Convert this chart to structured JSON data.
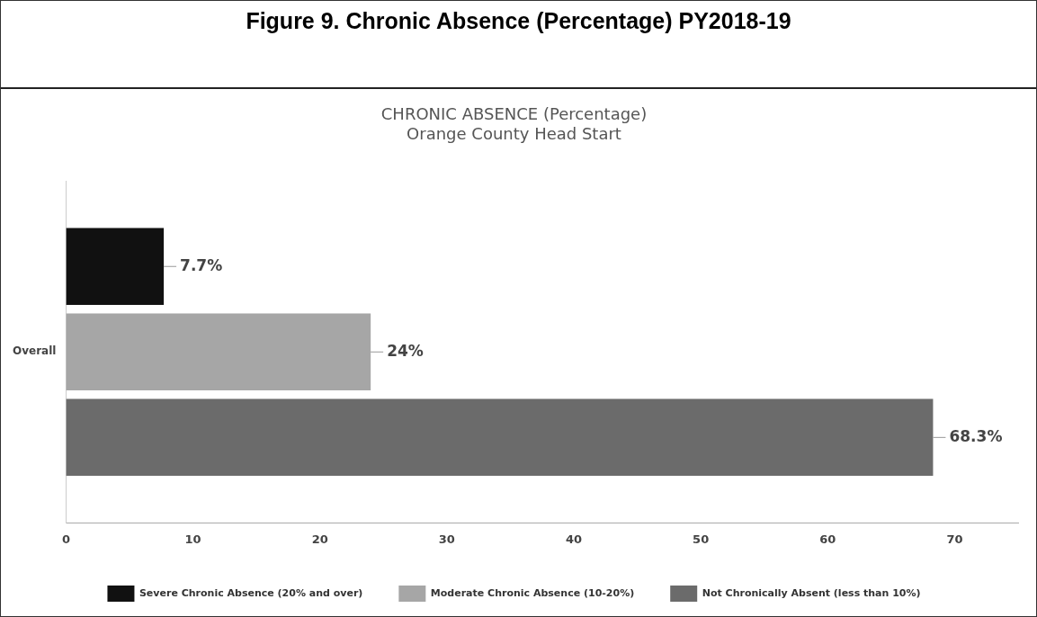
{
  "chart_data": {
    "type": "bar",
    "orientation": "horizontal",
    "title": "Figure 9. Chronic Absence (Percentage) PY2018-19",
    "subtitle": "CHRONIC ABSENCE (Percentage)",
    "annotations": [
      "Orange County Head Start"
    ],
    "categories": [
      "Overall"
    ],
    "series": [
      {
        "name": "Severe Chronic Absence (20% and over)",
        "color": "#111111",
        "values": [
          7.7
        ],
        "value_labels": [
          "7.7%"
        ]
      },
      {
        "name": "Moderate Chronic Absence (10-20%)",
        "color": "#a6a6a6",
        "values": [
          24
        ],
        "value_labels": [
          "24%"
        ]
      },
      {
        "name": "Not Chronically Absent (less than 10%)",
        "color": "#6b6b6b",
        "values": [
          68.3
        ],
        "value_labels": [
          "68.3%"
        ]
      }
    ],
    "xlim": [
      0,
      75
    ],
    "xticks": [
      0,
      10,
      20,
      30,
      40,
      50,
      60,
      70
    ],
    "grid": false,
    "legend": "bottom"
  }
}
